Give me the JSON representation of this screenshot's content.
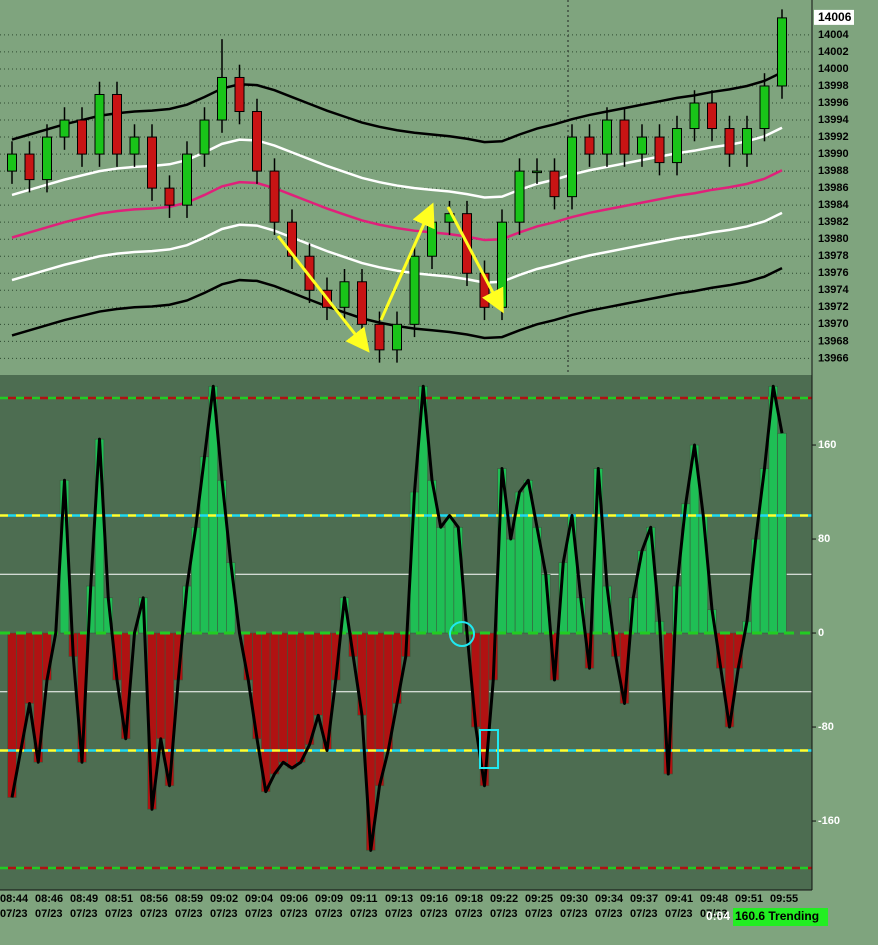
{
  "chart_data": [
    {
      "type": "candlestick",
      "categories": [
        "08:44",
        null,
        "08:46",
        null,
        "08:49",
        null,
        "08:51",
        null,
        "08:56",
        null,
        "08:59",
        null,
        "09:02",
        null,
        "09:04",
        null,
        "09:06",
        null,
        "09:09",
        null,
        "09:11",
        null,
        "09:13",
        null,
        "09:16",
        null,
        "09:18",
        null,
        "09:22",
        null,
        "09:25",
        null,
        "09:30",
        null,
        "09:34",
        null,
        "09:37",
        null,
        "09:41",
        null,
        "09:48",
        null,
        "09:51",
        null,
        "09:55"
      ],
      "date": "07/23",
      "open": [
        13988,
        13990,
        13987,
        13992,
        13994,
        13990,
        13997,
        13990,
        13992,
        13986,
        13984,
        13990,
        13994,
        13999,
        13995,
        13988,
        13982,
        13978,
        13974,
        13972,
        13975,
        13970,
        13967,
        13970,
        13978,
        13982,
        13983,
        13976,
        13972,
        13982,
        13988,
        13988,
        13985,
        13992,
        13990,
        13994,
        13990,
        13992,
        13989,
        13993,
        13996,
        13993,
        13990,
        13993,
        13998
      ],
      "high": [
        13991.5,
        13991.5,
        13993.5,
        13995.5,
        13995.5,
        13998.5,
        13998.5,
        13993.5,
        13993.5,
        13987.5,
        13991.5,
        13995.5,
        14003.5,
        14000.5,
        13996.5,
        13989.5,
        13983.5,
        13979.5,
        13975.5,
        13976.5,
        13976.5,
        13971.5,
        13971.5,
        13979.5,
        13983.5,
        13984.5,
        13984.5,
        13977.5,
        13983.5,
        13989.5,
        13989.5,
        13989.5,
        13993.5,
        13993.5,
        13995.5,
        13995.5,
        13993.5,
        13993.5,
        13994.5,
        13997.5,
        13997.5,
        13994.5,
        13994.5,
        13999.5,
        14007
      ],
      "low": [
        13986.5,
        13985.5,
        13985.5,
        13990.5,
        13988.5,
        13988.5,
        13988.5,
        13988.5,
        13984.5,
        13982.5,
        13982.5,
        13988.5,
        13992.5,
        13993.5,
        13986.5,
        13980.5,
        13976.5,
        13972.5,
        13970.5,
        13970.5,
        13968.5,
        13965.5,
        13965.5,
        13968.5,
        13976.5,
        13980.5,
        13974.5,
        13970.5,
        13970.5,
        13980.5,
        13986.5,
        13983.5,
        13983.5,
        13988.5,
        13988.5,
        13988.5,
        13988.5,
        13987.5,
        13987.5,
        13991.5,
        13991.5,
        13988.5,
        13988.5,
        13991.5,
        13996.5
      ],
      "close": [
        13990,
        13987,
        13992,
        13994,
        13990,
        13997,
        13990,
        13992,
        13986,
        13984,
        13990,
        13994,
        13999,
        13995,
        13988,
        13982,
        13978,
        13974,
        13972,
        13975,
        13970,
        13967,
        13970,
        13978,
        13982,
        13983,
        13976,
        13972,
        13982,
        13988,
        13988,
        13985,
        13992,
        13990,
        13994,
        13990,
        13992,
        13989,
        13993,
        13996,
        13993,
        13990,
        13993,
        13998,
        14006
      ],
      "up_color": "#19c419",
      "down_color": "#c81414",
      "series": [
        {
          "color": "#000000",
          "values": [
            13991.7,
            13992.3,
            13992.9,
            13993.5,
            13994,
            13994.5,
            13994.8,
            13995,
            13995.1,
            13995.3,
            13995.8,
            13996.7,
            13997.7,
            13998.2,
            13998.1,
            13997.5,
            13996.7,
            13995.9,
            13995.1,
            13994.4,
            13993.7,
            13993.2,
            13992.8,
            13992.5,
            13992.3,
            13992.1,
            13991.8,
            13991.4,
            13991.5,
            13992.3,
            13993,
            13993.5,
            13994.1,
            13994.6,
            13995,
            13995.4,
            13995.8,
            13996.2,
            13996.6,
            13996.9,
            13997.3,
            13997.6,
            13998,
            13998.6,
            13999.6
          ]
        },
        {
          "color": "#ffffff",
          "values": [
            13985.2,
            13985.8,
            13986.4,
            13987,
            13987.5,
            13988,
            13988.3,
            13988.5,
            13988.6,
            13988.8,
            13989.3,
            13990.2,
            13991.2,
            13991.7,
            13991.6,
            13991,
            13990.2,
            13989.4,
            13988.6,
            13987.9,
            13987.2,
            13986.7,
            13986.3,
            13986,
            13985.8,
            13985.6,
            13985.3,
            13984.9,
            13985,
            13985.8,
            13986.5,
            13987,
            13987.6,
            13988.1,
            13988.5,
            13988.9,
            13989.3,
            13989.7,
            13990.1,
            13990.4,
            13990.8,
            13991.1,
            13991.5,
            13992.1,
            13993.1
          ]
        },
        {
          "color": "#e0207a",
          "values": [
            13980.2,
            13980.8,
            13981.4,
            13982,
            13982.5,
            13983,
            13983.3,
            13983.5,
            13983.6,
            13983.8,
            13984.3,
            13985.2,
            13986.2,
            13986.7,
            13986.6,
            13986,
            13985.2,
            13984.4,
            13983.6,
            13982.9,
            13982.2,
            13981.7,
            13981.3,
            13981,
            13980.8,
            13980.6,
            13980.3,
            13979.9,
            13980,
            13980.8,
            13981.5,
            13982,
            13982.6,
            13983.1,
            13983.5,
            13983.9,
            13984.3,
            13984.7,
            13985.1,
            13985.4,
            13985.8,
            13986.1,
            13986.5,
            13987.1,
            13988.1
          ]
        },
        {
          "color": "#ffffff",
          "values": [
            13975.2,
            13975.8,
            13976.4,
            13977,
            13977.5,
            13978,
            13978.3,
            13978.5,
            13978.6,
            13978.8,
            13979.3,
            13980.2,
            13981.2,
            13981.7,
            13981.6,
            13981,
            13980.2,
            13979.4,
            13978.6,
            13977.9,
            13977.2,
            13976.7,
            13976.3,
            13976,
            13975.8,
            13975.6,
            13975.3,
            13974.9,
            13975,
            13975.8,
            13976.5,
            13977,
            13977.6,
            13978.1,
            13978.5,
            13978.9,
            13979.3,
            13979.7,
            13980.1,
            13980.4,
            13980.8,
            13981.1,
            13981.5,
            13982.1,
            13983.1
          ]
        },
        {
          "color": "#000000",
          "values": [
            13968.7,
            13969.3,
            13969.9,
            13970.5,
            13971,
            13971.5,
            13971.8,
            13972,
            13972.1,
            13972.3,
            13972.8,
            13973.7,
            13974.7,
            13975.2,
            13975.1,
            13974.5,
            13973.7,
            13972.9,
            13972.1,
            13971.4,
            13970.7,
            13970.2,
            13969.8,
            13969.5,
            13969.3,
            13969.1,
            13968.8,
            13968.4,
            13968.5,
            13969.3,
            13970,
            13970.5,
            13971.1,
            13971.6,
            13972,
            13972.4,
            13972.8,
            13973.2,
            13973.6,
            13973.9,
            13974.3,
            13974.6,
            13975,
            13975.6,
            13976.6
          ]
        }
      ],
      "ylim": [
        13964.4,
        14008.1
      ],
      "yticks": [
        13966,
        13968,
        13970,
        13972,
        13974,
        13976,
        13978,
        13980,
        13982,
        13984,
        13986,
        13988,
        13990,
        13992,
        13994,
        13996,
        13998,
        14000,
        14002,
        14004
      ],
      "grid": true
    },
    {
      "type": "histogram",
      "values": [
        -140,
        -100,
        -60,
        -110,
        -40,
        0,
        130,
        -20,
        -110,
        40,
        165,
        30,
        -40,
        -90,
        0,
        30,
        -150,
        -90,
        -130,
        -40,
        40,
        90,
        150,
        210,
        130,
        60,
        0,
        -40,
        -90,
        -135,
        -120,
        -110,
        -115,
        -110,
        -95,
        -70,
        -100,
        -40,
        30,
        -20,
        -70,
        -185,
        -130,
        -100,
        -60,
        -20,
        120,
        210,
        130,
        90,
        100,
        90,
        0,
        -80,
        -130,
        -40,
        140,
        80,
        120,
        130,
        90,
        50,
        -40,
        60,
        100,
        30,
        -30,
        140,
        40,
        -20,
        -60,
        30,
        70,
        90,
        10,
        -120,
        40,
        110,
        160,
        100,
        20,
        -30,
        -80,
        -30,
        10,
        80,
        140,
        210,
        170
      ],
      "pos_color": "#1fbf55",
      "neg_color": "#b01212",
      "line_color": "#000000",
      "ylim": [
        -218.7,
        219.6
      ],
      "yticks": [
        160,
        80,
        0,
        -80,
        -160
      ],
      "levels": [
        200,
        100,
        -100,
        -200
      ],
      "white_levels": [
        50,
        -50
      ],
      "timer": "0:04",
      "status": "160.6 Trending"
    }
  ]
}
